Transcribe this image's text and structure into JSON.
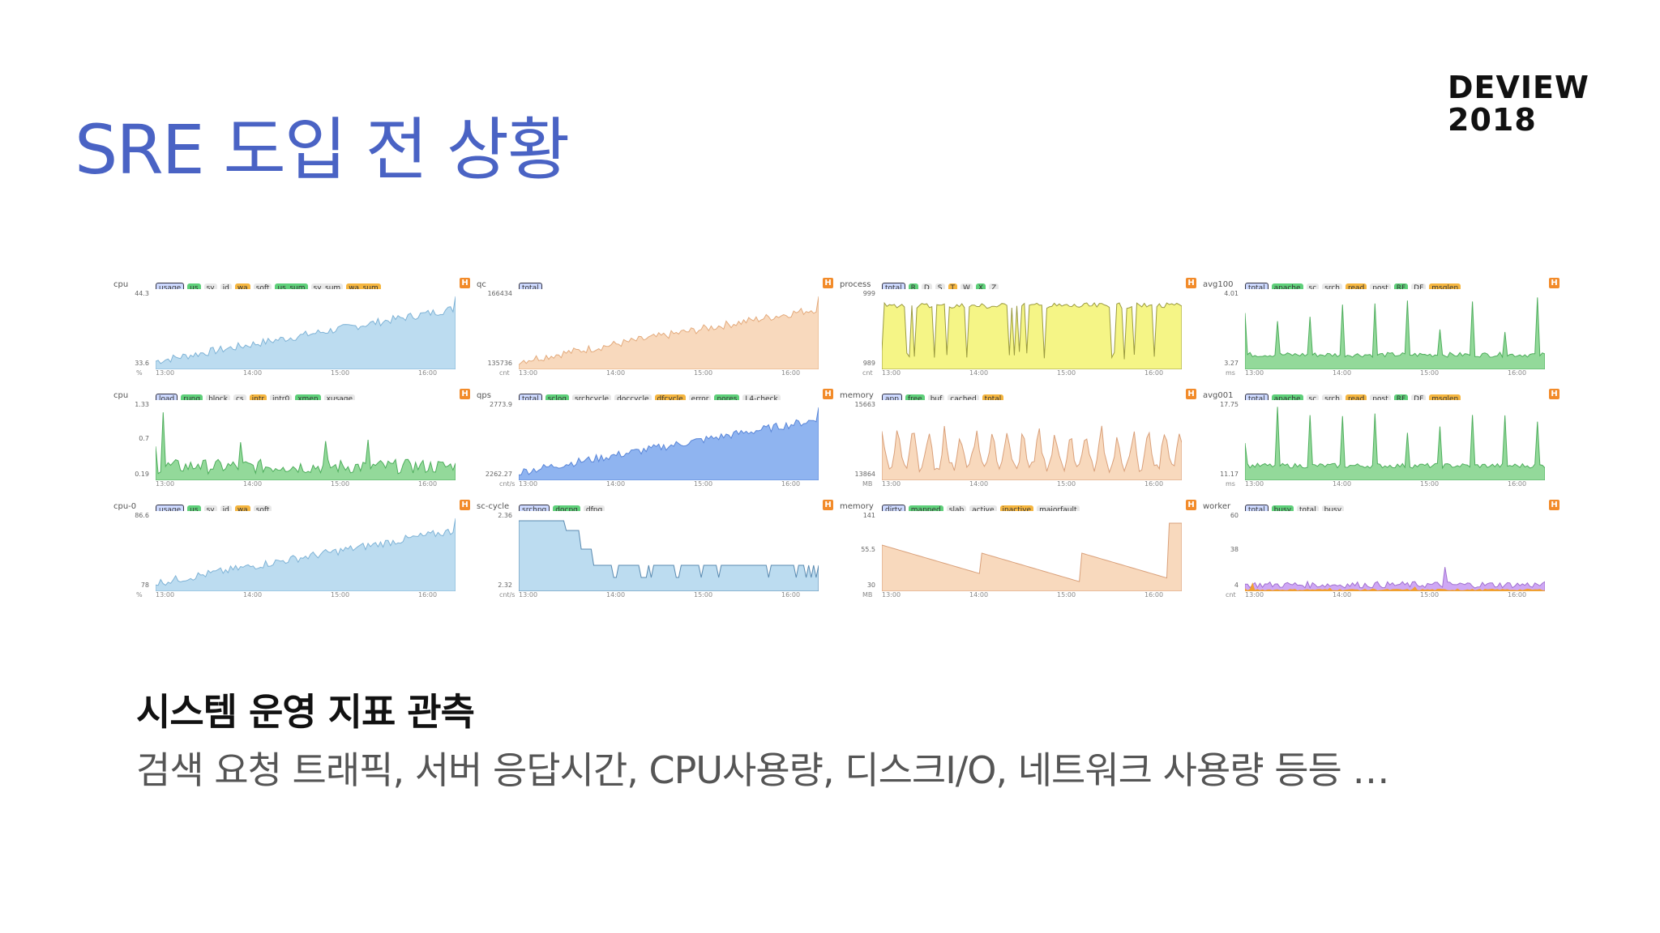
{
  "slide": {
    "title": "SRE 도입 전 상황",
    "logo_line1": "DEVIEW",
    "logo_line2": "2018",
    "heading": "시스템 운영 지표 관측",
    "description": "검색 요청 트래픽, 서버 응답시간, CPU사용량, 디스크I/O, 네트워크 사용량 등등 …"
  },
  "colors": {
    "title": "#4a63c4",
    "blue_fill": "#bcdcf0",
    "peach_fill": "#f8d9bd",
    "yellow_fill": "#f5f586",
    "green_fill": "#93d99a",
    "deep_blue_fill": "#8fb4f0",
    "purple_fill": "#cfa8f5",
    "orange_line": "#f0a030"
  },
  "panels": [
    {
      "label": "cpu",
      "tags": [
        "usage",
        "us",
        "sy",
        "id",
        "wa",
        "soft",
        "us_sum",
        "sy_sum",
        "wa_sum"
      ],
      "ymax": "44.3",
      "ymin": "33.6",
      "unit": "%",
      "times": [
        "13:00",
        "14:00",
        "15:00",
        "16:00"
      ],
      "style": "rise",
      "fill": "#bcdcf0",
      "stroke": "#7fb3d6"
    },
    {
      "label": "qc",
      "tags": [
        "total"
      ],
      "ymax": "166434",
      "ymin": "135736",
      "unit": "cnt",
      "times": [
        "13:00",
        "14:00",
        "15:00",
        "16:00"
      ],
      "style": "rise",
      "fill": "#f8d9bd",
      "stroke": "#e3aa7c"
    },
    {
      "label": "process",
      "tags": [
        "total",
        "R",
        "D",
        "S",
        "T",
        "W",
        "X",
        "Z"
      ],
      "ymax": "999",
      "ymin": "989",
      "unit": "cnt",
      "times": [
        "13:00",
        "14:00",
        "15:00",
        "16:00"
      ],
      "style": "flat",
      "fill": "#f5f586",
      "stroke": "#9a9a40"
    },
    {
      "label": "avg100",
      "tags": [
        "total",
        "apache",
        "sc",
        "srch",
        "read",
        "post",
        "RF",
        "DF",
        "msglen"
      ],
      "ymax": "4.01",
      "ymin": "3.27",
      "unit": "ms",
      "times": [
        "13:00",
        "14:00",
        "15:00",
        "16:00"
      ],
      "style": "spike",
      "fill": "#93d99a",
      "stroke": "#4fae5d"
    },
    {
      "label": "cpu",
      "tags": [
        "load",
        "runq",
        "block",
        "cs",
        "intr",
        "intr0",
        "xmen",
        "xusage"
      ],
      "ymax": "1.33",
      "ymin": "0.19",
      "ymid": "0.7",
      "unit": "",
      "times": [
        "13:00",
        "14:00",
        "15:00",
        "16:00"
      ],
      "style": "noise",
      "fill": "#93d99a",
      "stroke": "#4fae5d"
    },
    {
      "label": "qps",
      "tags": [
        "total",
        "sclog",
        "srchcycle",
        "doccycle",
        "dfcycle",
        "error",
        "nores",
        "L4-check"
      ],
      "ymax": "2773.9",
      "ymin": "2262.27",
      "unit": "cnt/s",
      "times": [
        "13:00",
        "14:00",
        "15:00",
        "16:00"
      ],
      "style": "rise",
      "fill": "#8fb4f0",
      "stroke": "#5a86d8"
    },
    {
      "label": "memory",
      "tags": [
        "app",
        "free",
        "buf",
        "cached",
        "total"
      ],
      "ymax": "15663",
      "ymin": "13864",
      "unit": "MB",
      "times": [
        "13:00",
        "14:00",
        "15:00",
        "16:00"
      ],
      "style": "wave",
      "fill": "#f8d9bd",
      "stroke": "#d9a07a"
    },
    {
      "label": "avg001",
      "tags": [
        "total",
        "apache",
        "sc",
        "srch",
        "read",
        "post",
        "RF",
        "DF",
        "msglen"
      ],
      "ymax": "17.75",
      "ymin": "11.17",
      "unit": "ms",
      "times": [
        "13:00",
        "14:00",
        "15:00",
        "16:00"
      ],
      "style": "spike",
      "fill": "#93d99a",
      "stroke": "#4fae5d"
    },
    {
      "label": "cpu-0",
      "tags": [
        "usage",
        "us",
        "sy",
        "id",
        "wa",
        "soft"
      ],
      "ymax": "86.6",
      "ymin": "78",
      "unit": "%",
      "times": [
        "13:00",
        "14:00",
        "15:00",
        "16:00"
      ],
      "style": "rise",
      "fill": "#bcdcf0",
      "stroke": "#7fb3d6"
    },
    {
      "label": "sc-cycle",
      "tags": [
        "srchpq",
        "docpq",
        "dfpq"
      ],
      "ymax": "2.36",
      "ymin": "2.32",
      "unit": "cnt/s",
      "times": [
        "13:00",
        "14:00",
        "15:00",
        "16:00"
      ],
      "style": "step",
      "fill": "#bcdcf0",
      "stroke": "#5a8ab0"
    },
    {
      "label": "memory",
      "tags": [
        "dirty",
        "mapped",
        "slab",
        "active",
        "inactive",
        "majorfault"
      ],
      "ymax": "141",
      "ymin": "30",
      "ymid": "55.5",
      "unit": "MB",
      "times": [
        "13:00",
        "14:00",
        "15:00",
        "16:00"
      ],
      "style": "saw",
      "fill": "#f8d9bd",
      "stroke": "#d9a07a"
    },
    {
      "label": "worker",
      "tags": [
        "total",
        "busy",
        "total",
        "busy"
      ],
      "ymax": "60",
      "ymin": "4",
      "ymid": "38",
      "unit": "cnt",
      "times": [
        "13:00",
        "14:00",
        "15:00",
        "16:00"
      ],
      "style": "purple",
      "fill": "#cfa8f5",
      "stroke": "#a070d0"
    }
  ]
}
